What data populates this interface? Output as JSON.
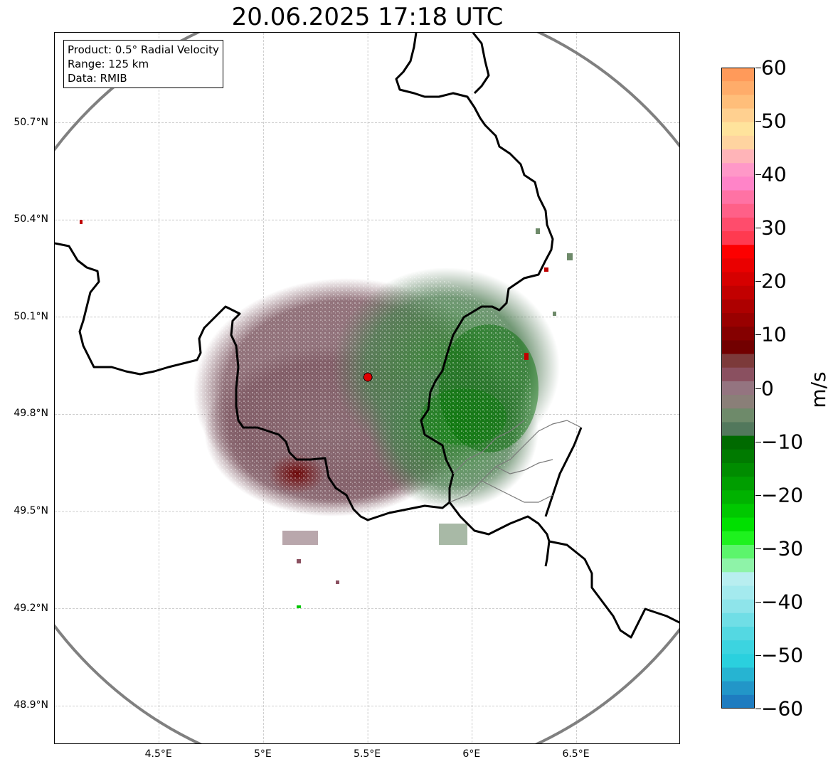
{
  "title": "20.06.2025 17:18 UTC",
  "info_box": {
    "product": "Product: 0.5° Radial Velocity",
    "range": "Range: 125 km",
    "data": "Data: RMIB"
  },
  "map": {
    "lat_ticks": [
      "50.7°N",
      "50.4°N",
      "50.1°N",
      "49.8°N",
      "49.5°N",
      "49.2°N",
      "48.9°N"
    ],
    "lon_ticks": [
      "4.5°E",
      "5°E",
      "5.5°E",
      "6°E",
      "6.5°E"
    ],
    "radar_site": {
      "lon": 5.5,
      "lat": 49.915
    },
    "range_ring_color": "#808080",
    "border_color": "#000000"
  },
  "colorbar": {
    "unit": "m/s",
    "range": [
      -60,
      60
    ],
    "ticks": [
      "60",
      "50",
      "40",
      "30",
      "20",
      "10",
      "0",
      "−10",
      "−20",
      "−30",
      "−40",
      "−50",
      "−60"
    ],
    "colors_top_to_bottom": [
      "#ff9a5a",
      "#ffac6a",
      "#ffbe7a",
      "#ffd090",
      "#ffe39c",
      "#ffd4a0",
      "#ffb4b8",
      "#ff98c8",
      "#ff84c8",
      "#ff72a4",
      "#ff6088",
      "#ff4c6c",
      "#ff3a50",
      "#fd0000",
      "#ea0000",
      "#d60000",
      "#c20000",
      "#ad0000",
      "#990000",
      "#850000",
      "#720000",
      "#7c3a3a",
      "#8a5060",
      "#947480",
      "#8a7f78",
      "#6e8a6a",
      "#52785c",
      "#006a00",
      "#007a00",
      "#008c00",
      "#009e00",
      "#00b200",
      "#00c800",
      "#00e000",
      "#1ef21e",
      "#5cf56c",
      "#8ef3a8",
      "#b8eef0",
      "#a4eaee",
      "#8ee4ea",
      "#70dee6",
      "#54d8e2",
      "#3cd4e0",
      "#2ad0de",
      "#26b4d2",
      "#2296c8",
      "#1e7cc0"
    ]
  }
}
